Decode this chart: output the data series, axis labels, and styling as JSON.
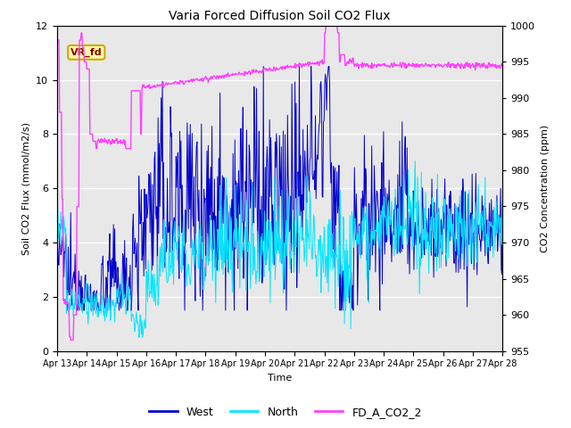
{
  "title": "Varia Forced Diffusion Soil CO2 Flux",
  "xlabel": "Time",
  "ylabel_left": "Soil CO2 Flux (mmol/m2/s)",
  "ylabel_right": "CO2 Concentration (ppm)",
  "ylim_left": [
    0,
    12
  ],
  "ylim_right": [
    955,
    1000
  ],
  "yticks_left": [
    0,
    2,
    4,
    6,
    8,
    10,
    12
  ],
  "yticks_right": [
    955,
    960,
    965,
    970,
    975,
    980,
    985,
    990,
    995,
    1000
  ],
  "xtick_labels": [
    "Apr 13",
    "Apr 14",
    "Apr 15",
    "Apr 16",
    "Apr 17",
    "Apr 18",
    "Apr 19",
    "Apr 20",
    "Apr 21",
    "Apr 22",
    "Apr 23",
    "Apr 24",
    "Apr 25",
    "Apr 26",
    "Apr 27",
    "Apr 28"
  ],
  "color_west": "#0000CD",
  "color_north": "#00E5FF",
  "color_fd": "#FF40FF",
  "color_background": "#E8E8E8",
  "annotation_text": "VR_fd",
  "annotation_color": "#8B0000",
  "annotation_bg": "#FFFFAA",
  "annotation_border": "#CCAA00",
  "legend_labels": [
    "West",
    "North",
    "FD_A_CO2_2"
  ],
  "num_points": 720,
  "n_days": 15
}
